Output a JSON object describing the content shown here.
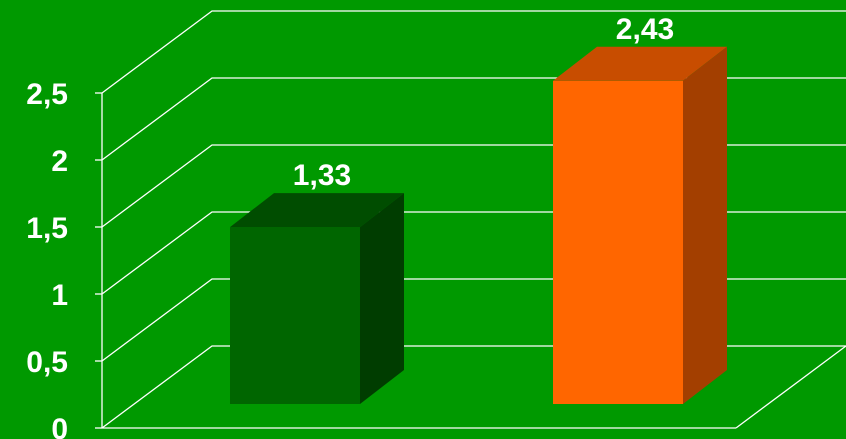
{
  "chart_data": {
    "type": "bar",
    "style": "3d",
    "categories": [
      "",
      ""
    ],
    "values": [
      1.33,
      2.43
    ],
    "data_labels": [
      "1,33",
      "2,43"
    ],
    "ylim": [
      0,
      2.5
    ],
    "yticks": [
      0,
      0.5,
      1,
      1.5,
      2,
      2.5
    ],
    "ytick_labels": [
      "0",
      "0,5",
      "1",
      "1,5",
      "2",
      "2,5"
    ],
    "grid": true,
    "legend": "none",
    "title": "",
    "xlabel": "",
    "ylabel": ""
  },
  "colors": {
    "background": "#009900",
    "gridline": "#ffffff",
    "text": "#ffffff",
    "bars": [
      {
        "front": "#006600",
        "top": "#004d00",
        "side": "#003d00"
      },
      {
        "front": "#ff6600",
        "top": "#c84d00",
        "side": "#a33f00"
      }
    ]
  }
}
